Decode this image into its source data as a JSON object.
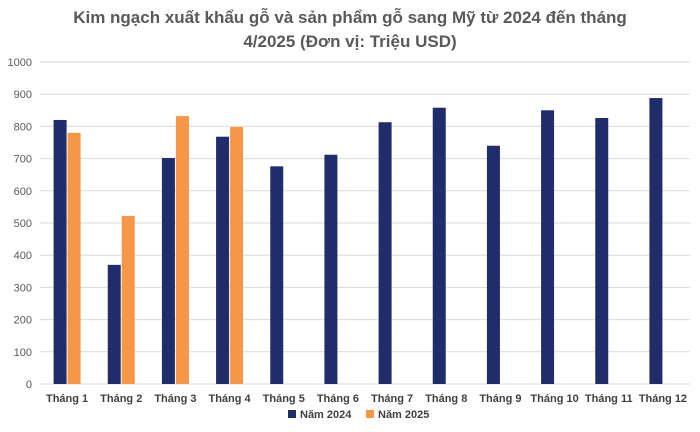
{
  "chart_data": {
    "type": "bar",
    "title_line1": "Kim ngạch xuất khẩu gỗ và sản phẩm gỗ sang Mỹ từ 2024 đến tháng",
    "title_line2": "4/2025 (Đơn vị: Triệu USD)",
    "categories": [
      "Tháng 1",
      "Tháng 2",
      "Tháng 3",
      "Tháng 4",
      "Tháng 5",
      "Tháng 6",
      "Tháng 7",
      "Tháng 8",
      "Tháng 9",
      "Tháng 10",
      "Tháng 11",
      "Tháng 12"
    ],
    "series": [
      {
        "name": "Năm 2024",
        "color": "#1F2D6B",
        "values": [
          820,
          370,
          702,
          768,
          676,
          712,
          813,
          858,
          740,
          850,
          826,
          888
        ]
      },
      {
        "name": "Năm 2025",
        "color": "#F79646",
        "values": [
          780,
          522,
          832,
          798,
          null,
          null,
          null,
          null,
          null,
          null,
          null,
          null
        ]
      }
    ],
    "ylim": [
      0,
      1000
    ],
    "yticks": [
      0,
      100,
      200,
      300,
      400,
      500,
      600,
      700,
      800,
      900,
      1000
    ],
    "grid": true,
    "legend_position": "bottom"
  }
}
